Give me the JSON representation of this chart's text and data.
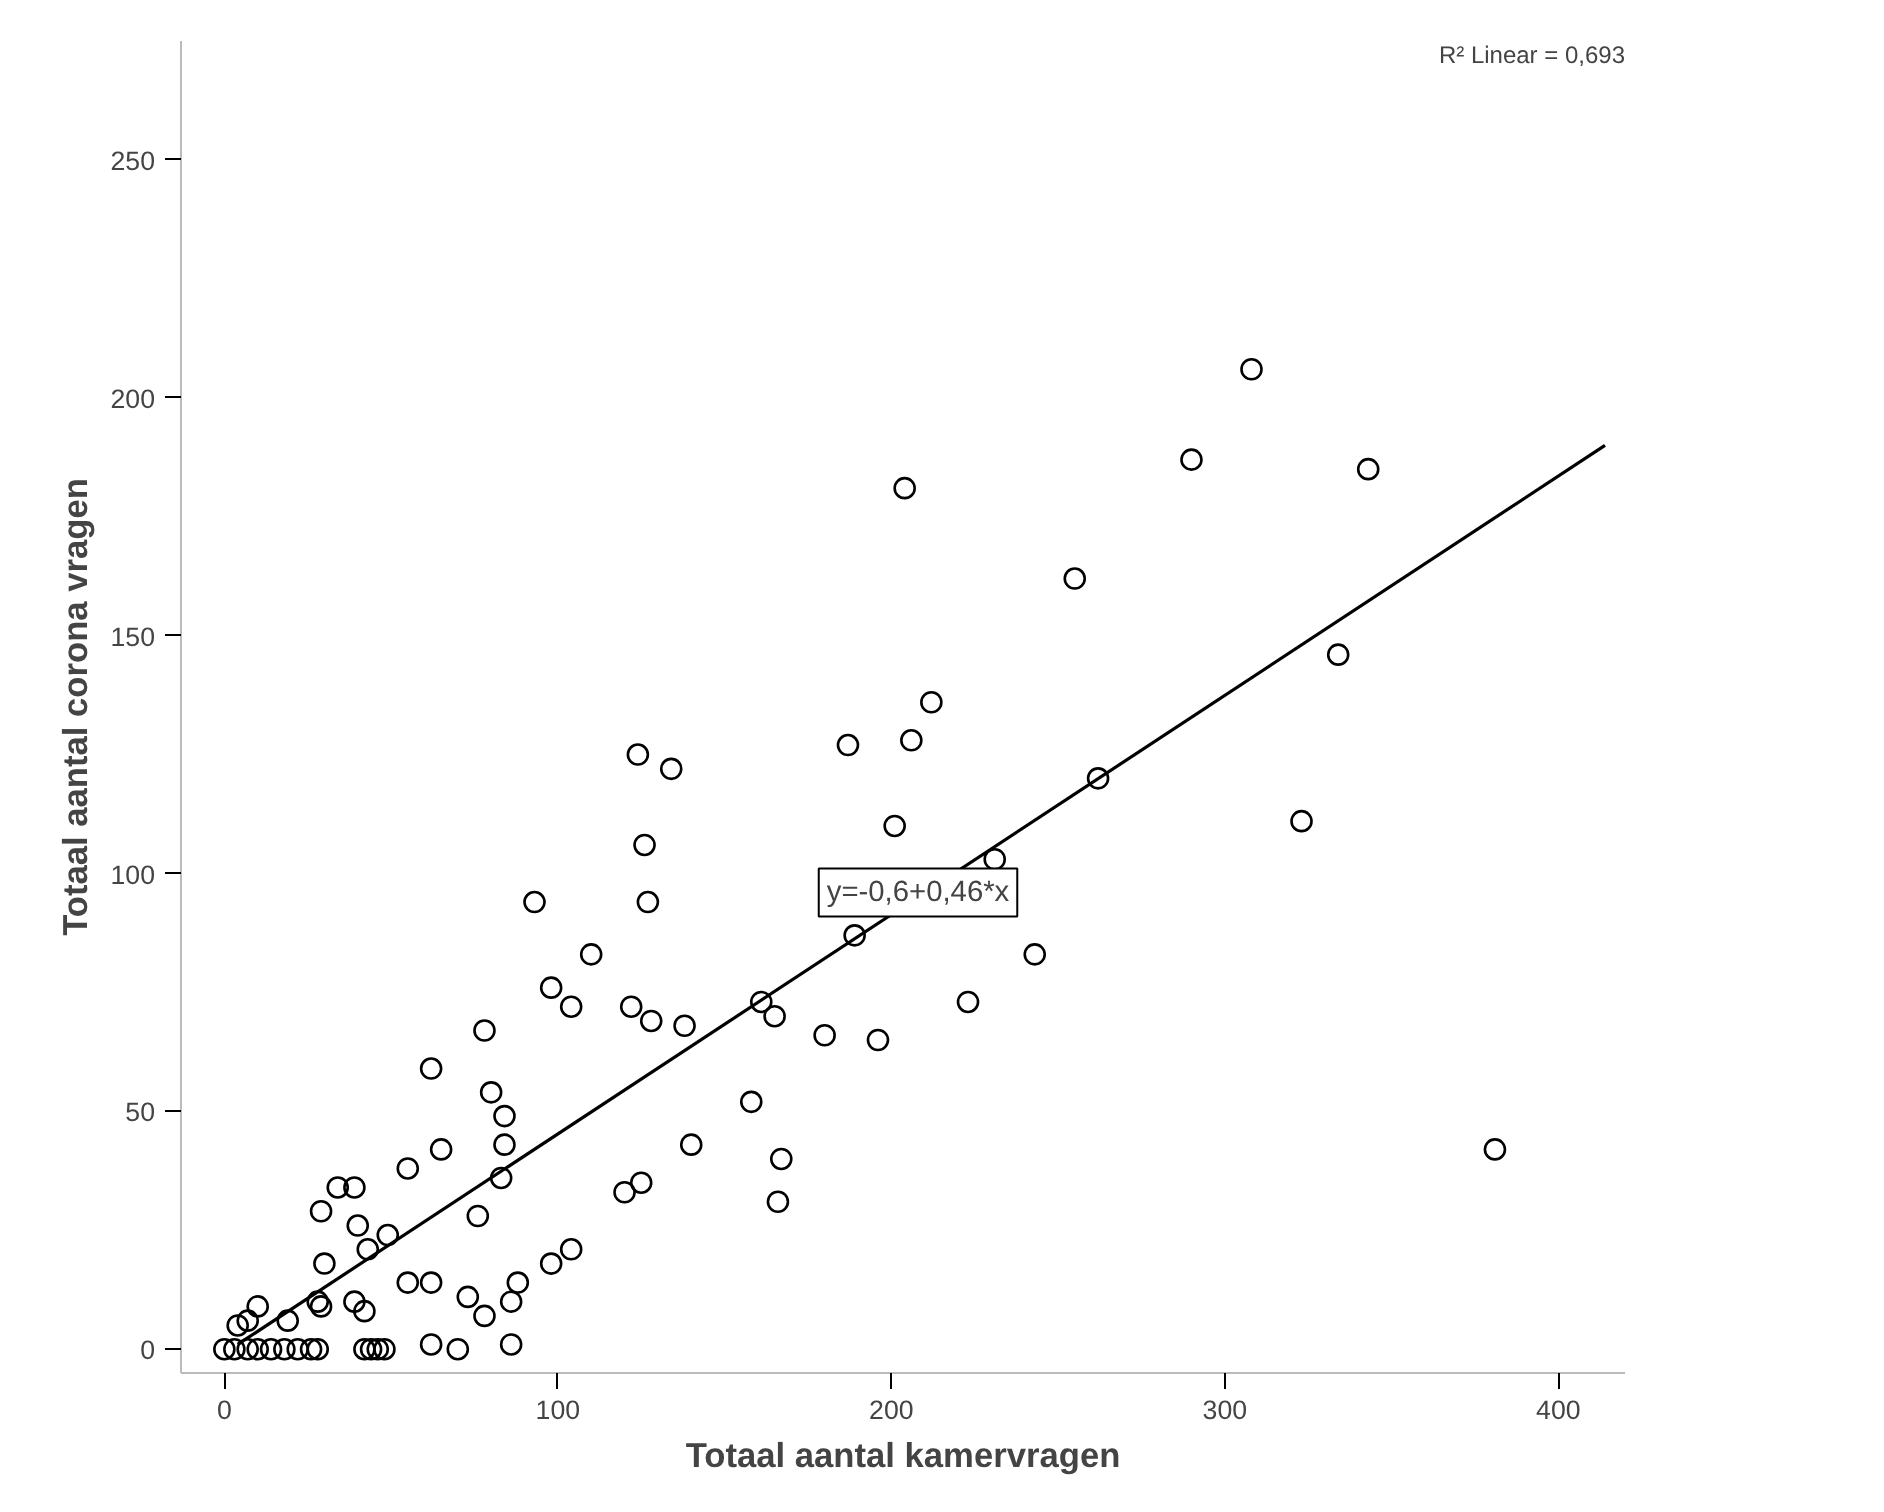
{
  "chart_data": {
    "type": "scatter",
    "xlabel": "Totaal aantal kamervragen",
    "ylabel": "Totaal aantal corona vragen",
    "xlim": [
      -13,
      420
    ],
    "ylim": [
      -5,
      275
    ],
    "xticks": [
      0,
      100,
      200,
      300,
      400
    ],
    "yticks": [
      0,
      50,
      100,
      150,
      200,
      250
    ],
    "grid": false,
    "annotations": [
      "R² Linear = 0,693",
      {
        "text": "y=-0,6+0,46*x",
        "x": 208,
        "y": 96
      }
    ],
    "series": [
      {
        "color": "#000000",
        "marker": "circle",
        "x": [
          308,
          290,
          343,
          204,
          255,
          334,
          212,
          187,
          206,
          201,
          262,
          323,
          231,
          189,
          243,
          223,
          161,
          165,
          180,
          196,
          381,
          124,
          134,
          126,
          93,
          127,
          110,
          98,
          104,
          122,
          128,
          138,
          78,
          62,
          80,
          84,
          84,
          65,
          55,
          83,
          158,
          140,
          167,
          166,
          125,
          120,
          76,
          39,
          40,
          34,
          29,
          49,
          43,
          30,
          55,
          62,
          73,
          78,
          86,
          88,
          98,
          104,
          28,
          29,
          39,
          42,
          10,
          7,
          19,
          4,
          0,
          3,
          7,
          10,
          14,
          18,
          22,
          26,
          28,
          42,
          44,
          46,
          48,
          62,
          70,
          86
        ],
        "values": [
          206,
          187,
          185,
          181,
          162,
          146,
          136,
          127,
          128,
          110,
          120,
          111,
          103,
          87,
          83,
          73,
          73,
          70,
          66,
          65,
          42,
          125,
          122,
          106,
          94,
          94,
          83,
          76,
          72,
          72,
          69,
          68,
          67,
          59,
          54,
          49,
          43,
          42,
          38,
          36,
          52,
          43,
          40,
          31,
          35,
          33,
          28,
          34,
          26,
          34,
          29,
          24,
          21,
          18,
          14,
          14,
          11,
          7,
          10,
          14,
          18,
          21,
          10,
          9,
          10,
          8,
          9,
          6,
          6,
          5,
          0,
          0,
          0,
          0,
          0,
          0,
          0,
          0,
          0,
          0,
          0,
          0,
          0,
          1,
          0,
          1
        ]
      },
      {
        "type": "line",
        "color": "#000000",
        "marker": "none",
        "line_style": "solid",
        "x": [
          4,
          414
        ],
        "values": [
          1,
          190
        ]
      }
    ]
  }
}
